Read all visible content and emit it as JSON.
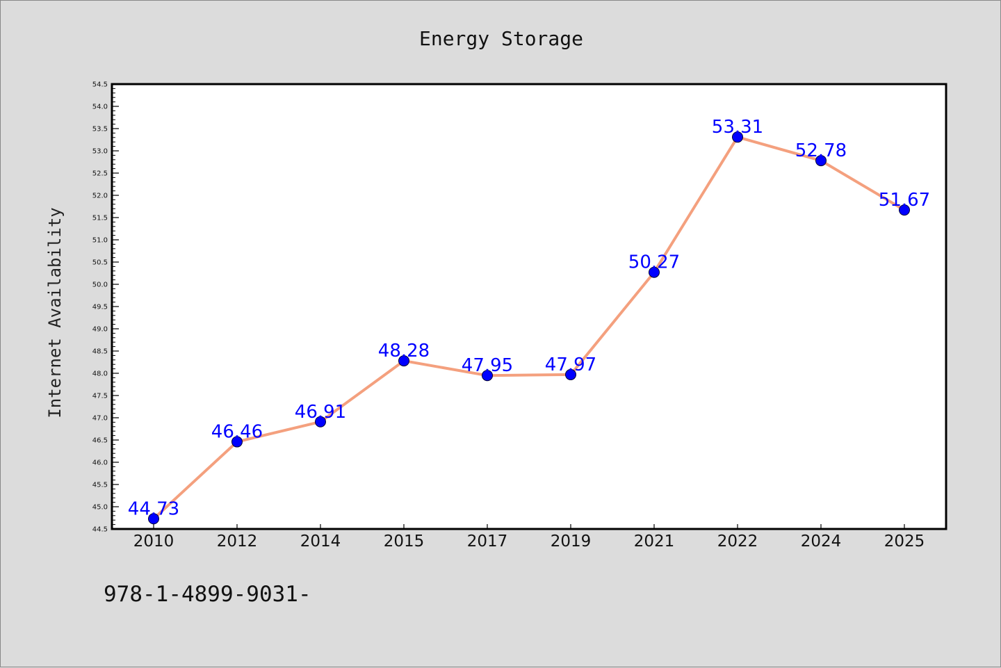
{
  "chart_data": {
    "type": "line",
    "title": "Energy Storage",
    "xlabel": "",
    "ylabel": "Internet Availability",
    "categories": [
      "2010",
      "2012",
      "2014",
      "2015",
      "2017",
      "2019",
      "2021",
      "2022",
      "2024",
      "2025"
    ],
    "series": [
      {
        "values": [
          44.73,
          46.46,
          46.91,
          48.28,
          47.95,
          47.97,
          50.27,
          53.31,
          52.78,
          51.67
        ]
      }
    ],
    "data_labels": [
      "44.73",
      "46.46",
      "46.91",
      "48.28",
      "47.95",
      "47.97",
      "50.27",
      "53.31",
      "52.78",
      "51.67"
    ],
    "ylim": [
      44.5,
      54.5
    ],
    "yticks": [
      "44.5",
      "45.0",
      "45.5",
      "46.0",
      "46.5",
      "47.0",
      "47.5",
      "48.0",
      "48.5",
      "49.0",
      "49.5",
      "50.0",
      "50.5",
      "51.0",
      "51.5",
      "52.0",
      "52.5",
      "53.0",
      "53.5",
      "54.0",
      "54.5"
    ],
    "grid": false,
    "legend": "none",
    "colors": {
      "line": "#f4a07e",
      "marker": "#0000ff",
      "data_label": "#0000ff",
      "background": "#dcdcdc",
      "plot_background": "#ffffff"
    }
  },
  "footer": {
    "text": "978-1-4899-9031-"
  }
}
